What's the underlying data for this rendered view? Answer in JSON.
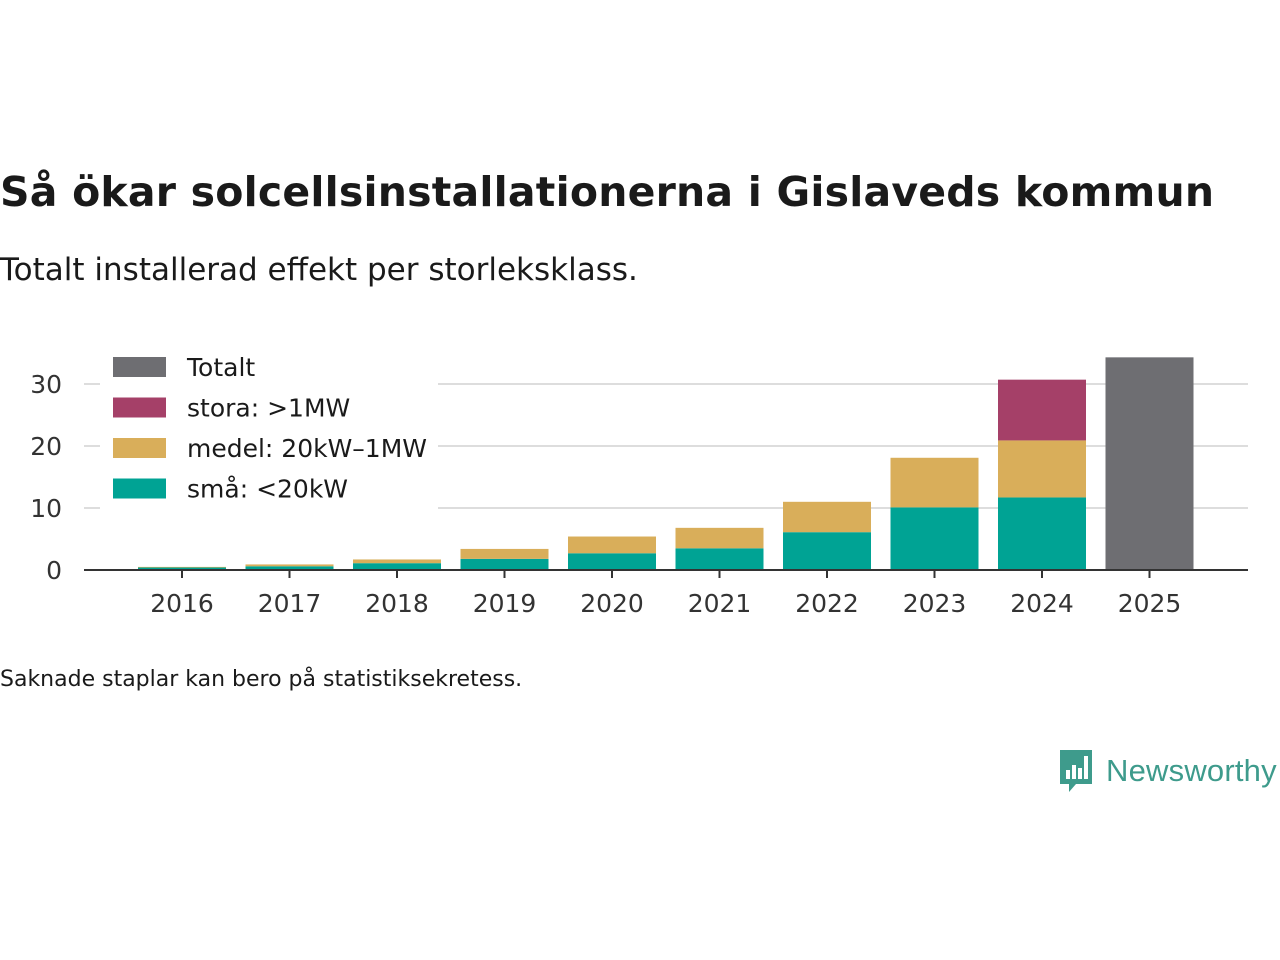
{
  "title": "Så ökar solcellsinstallationerna i Gislaveds kommun",
  "subtitle": "Totalt installerad effekt per storleksklass.",
  "note": "Saknade staplar kan bero på statistiksekretess.",
  "brand": {
    "name": "Newsworthy",
    "icon": "newsworthy-logo-icon",
    "color": "#3e9b8c"
  },
  "chart_data": {
    "type": "bar",
    "stacked": true,
    "title": "Så ökar solcellsinstallationerna i Gislaveds kommun",
    "xlabel": "",
    "ylabel": "",
    "ylim": [
      0,
      34.5
    ],
    "yticks": [
      0,
      10,
      20,
      30
    ],
    "grid": true,
    "legend_position": "top-left",
    "categories": [
      "2016",
      "2017",
      "2018",
      "2019",
      "2020",
      "2021",
      "2022",
      "2023",
      "2024",
      "2025"
    ],
    "series": [
      {
        "name": "små: <20kW",
        "color": "#00a394",
        "values": [
          0.4,
          0.6,
          1.1,
          1.8,
          2.7,
          3.5,
          6.1,
          10.1,
          11.7,
          null
        ]
      },
      {
        "name": "medel: 20kW–1MW",
        "color": "#d9ae5a",
        "values": [
          0.1,
          0.3,
          0.6,
          1.6,
          2.7,
          3.3,
          4.9,
          8.0,
          9.2,
          null
        ]
      },
      {
        "name": "stora: >1MW",
        "color": "#a54068",
        "values": [
          0,
          0,
          0,
          0,
          0,
          0,
          0,
          0,
          9.8,
          null
        ]
      },
      {
        "name": "Totalt",
        "color": "#6e6e72",
        "values": [
          null,
          null,
          null,
          null,
          null,
          null,
          null,
          null,
          null,
          34.3
        ]
      }
    ]
  }
}
